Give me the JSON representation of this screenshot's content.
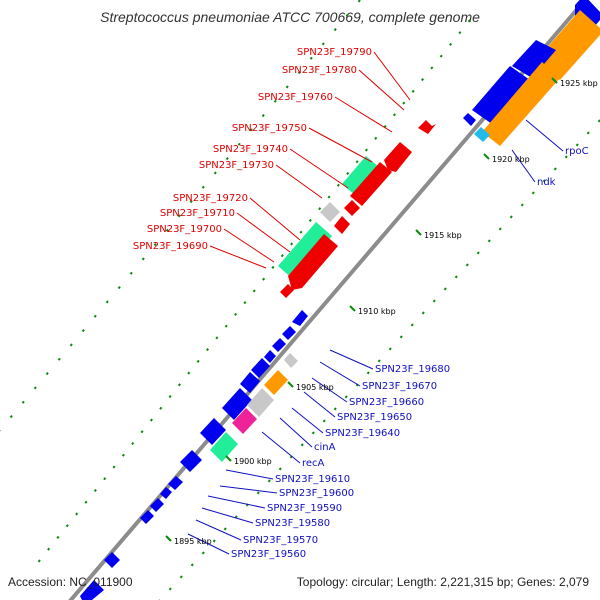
{
  "title": "Streptococcus pneumoniae ATCC 700669, complete genome",
  "footer": {
    "accession": "Accession: NC_011900",
    "summary": "Topology: circular; Length: 2,221,315 bp; Genes: 2,079"
  },
  "colors": {
    "backbone": "#8c8c8c",
    "reverse_label": "#e00000",
    "forward_label": "#1010c0",
    "blue_gene": "#0000ee",
    "red_gene": "#ee0000",
    "green_gene": "#22ee99",
    "grey_gene": "#c8c8c8",
    "orange_gene": "#ff9900",
    "pink_gene": "#ee2299",
    "cyan_gene": "#22bbee",
    "tick_mark": "#0a8a0a"
  },
  "ticks": [
    "1925 kbp",
    "1920 kbp",
    "1915 kbp",
    "1910 kbp",
    "1905 kbp",
    "1900 kbp",
    "1895 kbp"
  ],
  "reverse_labels": [
    "SPN23F_19790",
    "SPN23F_19780",
    "SPN23F_19760",
    "SPN23F_19750",
    "SPN23F_19740",
    "SPN23F_19730",
    "SPN23F_19720",
    "SPN23F_19710",
    "SPN23F_19700",
    "SPN23F_19690"
  ],
  "forward_labels": [
    "rpoC",
    "ndk",
    "SPN23F_19680",
    "SPN23F_19670",
    "SPN23F_19660",
    "SPN23F_19650",
    "SPN23F_19640",
    "cinA",
    "recA",
    "SPN23F_19610",
    "SPN23F_19600",
    "SPN23F_19590",
    "SPN23F_19580",
    "SPN23F_19570",
    "SPN23F_19560"
  ]
}
